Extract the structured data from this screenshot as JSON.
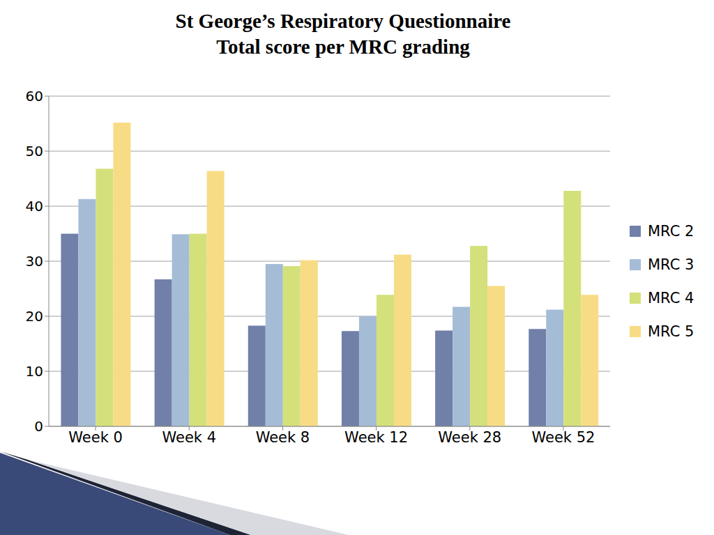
{
  "chart_data": {
    "type": "bar",
    "title": "St George’s Respiratory Questionnaire",
    "subtitle": "Total score per MRC grading",
    "categories": [
      "Week 0",
      "Week 4",
      "Week 8",
      "Week 12",
      "Week 28",
      "Week 52"
    ],
    "series": [
      {
        "name": "MRC 2",
        "color": "#7080a8",
        "values": [
          35.0,
          26.7,
          18.3,
          17.3,
          17.4,
          17.7
        ]
      },
      {
        "name": "MRC 3",
        "color": "#a5bcd6",
        "values": [
          41.3,
          34.9,
          29.5,
          20.0,
          21.7,
          21.2
        ]
      },
      {
        "name": "MRC 4",
        "color": "#d4e07a",
        "values": [
          46.8,
          35.0,
          29.1,
          23.9,
          32.8,
          42.8
        ]
      },
      {
        "name": "MRC 5",
        "color": "#f8dc85",
        "values": [
          55.2,
          46.4,
          30.2,
          31.2,
          25.5,
          23.9
        ]
      }
    ],
    "ylim": [
      0,
      60
    ],
    "yticks": [
      0,
      10,
      20,
      30,
      40,
      50,
      60
    ],
    "grid": true,
    "legend": "right"
  }
}
